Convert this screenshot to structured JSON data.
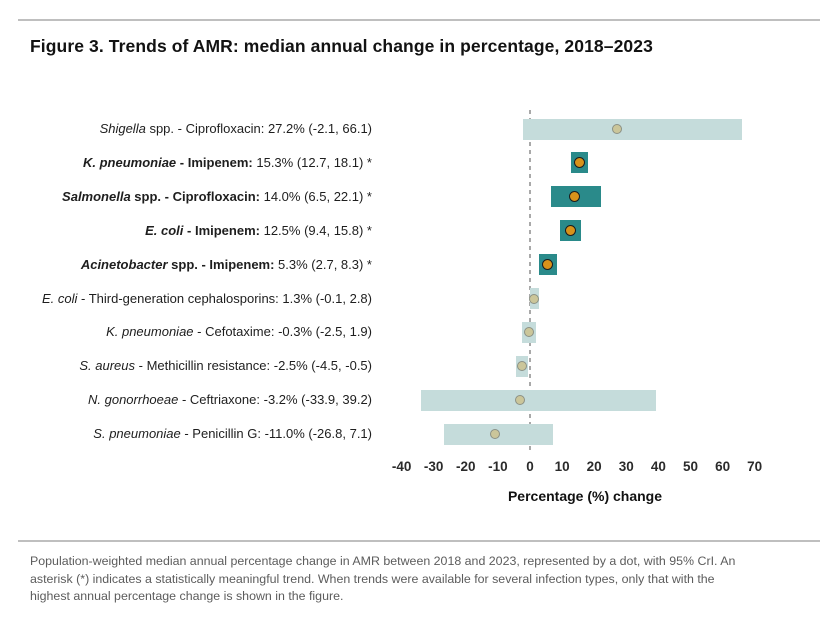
{
  "page": {
    "footer_lines": [
      "Population-weighted median annual percentage change in AMR between 2018 and 2023, represented by a dot, with 95% CrI. An",
      "asterisk (*) indicates a statistically meaningful trend. When trends were available for several infection types, only that with the",
      "highest annual percentage change is shown in the figure."
    ]
  },
  "chart_data": {
    "type": "bar",
    "subtype": "horizontal-interval-with-point-estimate",
    "title": "Figure 3. Trends of AMR: median annual change in percentage, 2018–2023",
    "xlabel": "Percentage (%) change",
    "xlim": [
      -40,
      70
    ],
    "x_ticks": [
      -40,
      -30,
      -20,
      -10,
      0,
      10,
      20,
      30,
      40,
      50,
      60,
      70
    ],
    "grid": "off",
    "legend": "none",
    "zero_reference_line": true,
    "rows": [
      {
        "org": "Shigella",
        "mid": " spp. - Ciprofloxacin:",
        "val": " 27.2% (-2.1, 66.1)",
        "median": 27.2,
        "ci_low": -2.1,
        "ci_high": 66.1,
        "significant": false
      },
      {
        "org": "K. pneumoniae",
        "mid": " - Imipenem:",
        "val": " 15.3% (12.7, 18.1) *",
        "median": 15.3,
        "ci_low": 12.7,
        "ci_high": 18.1,
        "significant": true
      },
      {
        "org": "Salmonella",
        "mid": " spp. - Ciprofloxacin:",
        "val": " 14.0% (6.5, 22.1) *",
        "median": 14.0,
        "ci_low": 6.5,
        "ci_high": 22.1,
        "significant": true
      },
      {
        "org": "E. coli",
        "mid": " - Imipenem:",
        "val": " 12.5% (9.4, 15.8) *",
        "median": 12.5,
        "ci_low": 9.4,
        "ci_high": 15.8,
        "significant": true
      },
      {
        "org": "Acinetobacter",
        "mid": " spp. - Imipenem:",
        "val": " 5.3% (2.7, 8.3) *",
        "median": 5.3,
        "ci_low": 2.7,
        "ci_high": 8.3,
        "significant": true
      },
      {
        "org": "E. coli",
        "mid": " - Third-generation cephalosporins:",
        "val": " 1.3% (-0.1, 2.8)",
        "median": 1.3,
        "ci_low": -0.1,
        "ci_high": 2.8,
        "significant": false
      },
      {
        "org": "K. pneumoniae",
        "mid": " - Cefotaxime:",
        "val": " -0.3% (-2.5, 1.9)",
        "median": -0.3,
        "ci_low": -2.5,
        "ci_high": 1.9,
        "significant": false
      },
      {
        "org": "S. aureus",
        "mid": " - Methicillin resistance:",
        "val": " -2.5% (-4.5, -0.5)",
        "median": -2.5,
        "ci_low": -4.5,
        "ci_high": -0.5,
        "significant": false
      },
      {
        "org": "N. gonorrhoeae",
        "mid": " - Ceftriaxone:",
        "val": " -3.2% (-33.9, 39.2)",
        "median": -3.2,
        "ci_low": -33.9,
        "ci_high": 39.2,
        "significant": false
      },
      {
        "org": "S. pneumoniae",
        "mid": " - Penicillin G:",
        "val": " -11.0% (-26.8, 7.1)",
        "median": -11.0,
        "ci_low": -26.8,
        "ci_high": 7.1,
        "significant": false
      }
    ],
    "colors": {
      "bar_significant": "#2a8a8a",
      "bar_nonsignificant": "#c5dcdb",
      "dot_significant_fill": "#d8921a",
      "dot_significant_border": "#1c1c1c",
      "dot_nonsignificant_fill": "#cbc69a",
      "dot_nonsignificant_border": "#8c9185",
      "zero_line": "#a9a9a9",
      "divider": "#bfbfbf",
      "title_text": "#121212",
      "footer_text": "#5c5c5c"
    }
  }
}
